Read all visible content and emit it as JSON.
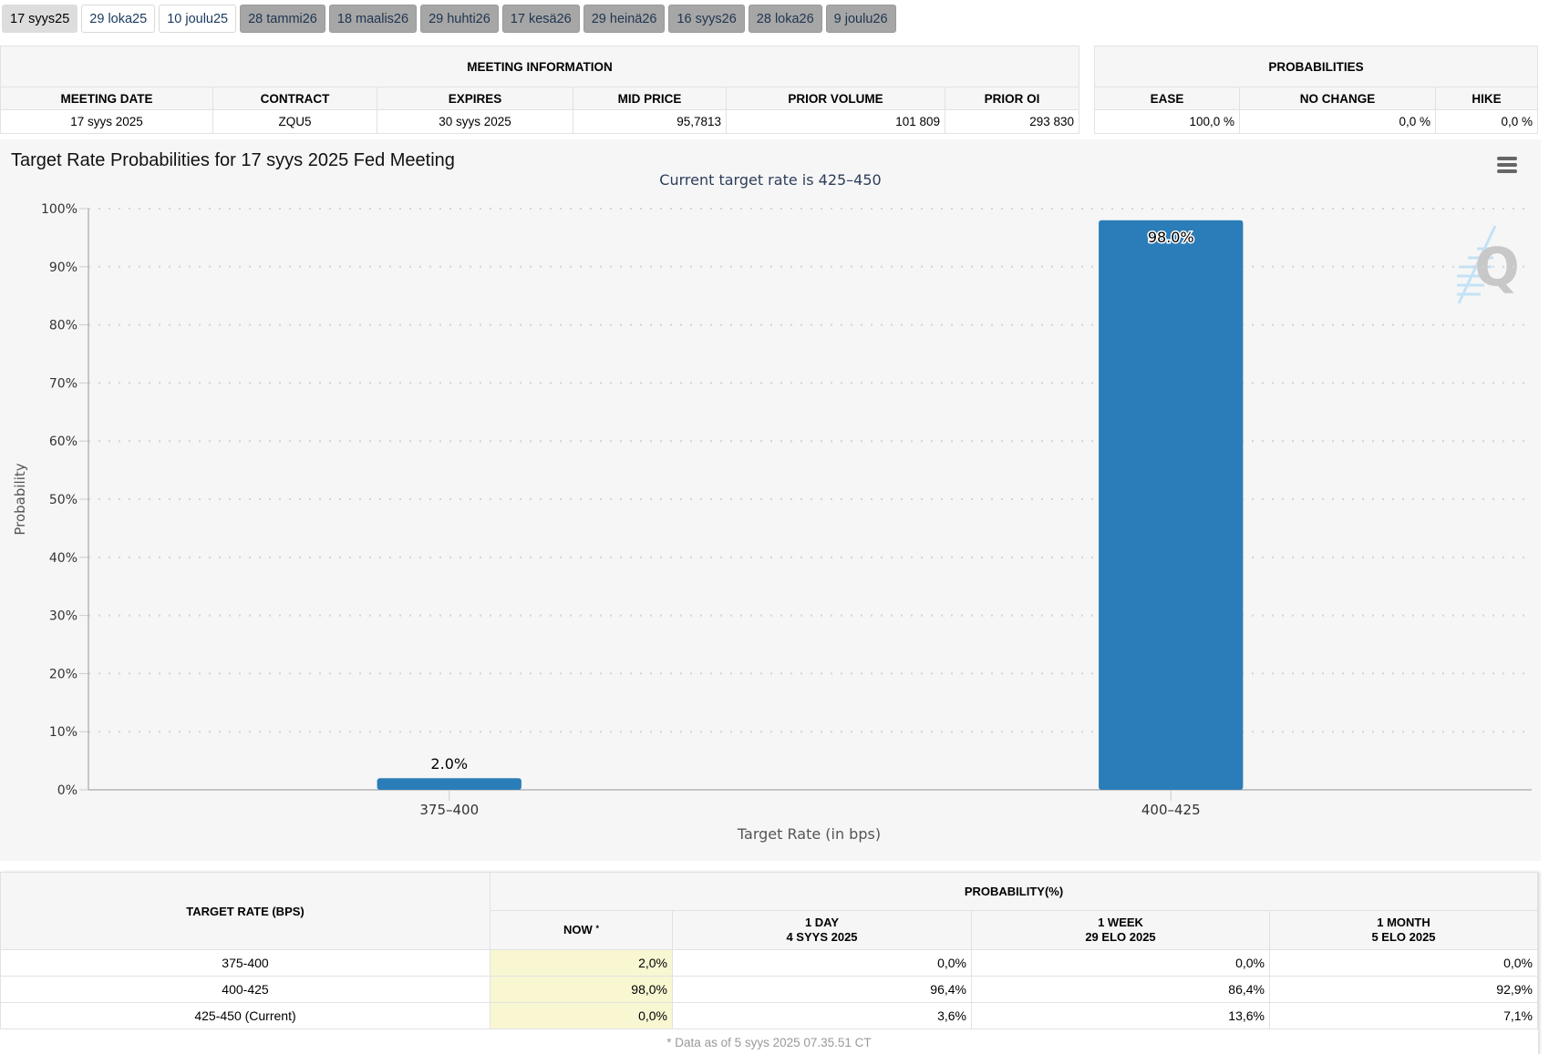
{
  "tabs": [
    {
      "label": "17 syys25",
      "state": "active"
    },
    {
      "label": "29 loka25",
      "state": "normal"
    },
    {
      "label": "10 joulu25",
      "state": "normal"
    },
    {
      "label": "28 tammi26",
      "state": "dim"
    },
    {
      "label": "18 maalis26",
      "state": "dim"
    },
    {
      "label": "29 huhti26",
      "state": "dim"
    },
    {
      "label": "17 kesä26",
      "state": "dim"
    },
    {
      "label": "29 heinä26",
      "state": "dim"
    },
    {
      "label": "16 syys26",
      "state": "dim"
    },
    {
      "label": "28 loka26",
      "state": "dim"
    },
    {
      "label": "9 joulu26",
      "state": "dim"
    }
  ],
  "meeting_info": {
    "group_title": "MEETING INFORMATION",
    "headers": [
      "MEETING DATE",
      "CONTRACT",
      "EXPIRES",
      "MID PRICE",
      "PRIOR VOLUME",
      "PRIOR OI"
    ],
    "row": [
      "17 syys 2025",
      "ZQU5",
      "30 syys 2025",
      "95,7813",
      "101 809",
      "293 830"
    ]
  },
  "probabilities": {
    "group_title": "PROBABILITIES",
    "headers": [
      "EASE",
      "NO CHANGE",
      "HIKE"
    ],
    "row": [
      "100,0 %",
      "0,0 %",
      "0,0 %"
    ]
  },
  "chart_data": {
    "type": "bar",
    "title": "Target Rate Probabilities for 17 syys 2025 Fed Meeting",
    "subtitle": "Current target rate is 425–450",
    "categories": [
      "375–400",
      "400–425"
    ],
    "values": [
      2.0,
      98.0
    ],
    "data_labels": [
      "2.0%",
      "98.0%"
    ],
    "xlabel": "Target Rate (in bps)",
    "ylabel": "Probability",
    "ylim": [
      0,
      100
    ],
    "yticks": [
      0,
      10,
      20,
      30,
      40,
      50,
      60,
      70,
      80,
      90,
      100
    ],
    "ytick_labels": [
      "0%",
      "10%",
      "20%",
      "30%",
      "40%",
      "50%",
      "60%",
      "70%",
      "80%",
      "90%",
      "100%"
    ],
    "grid": true,
    "bar_color": "#2a7db8",
    "legend": "none"
  },
  "rates_table": {
    "target_header": "TARGET RATE (BPS)",
    "prob_group": "PROBABILITY(%)",
    "columns": [
      {
        "line1": "NOW",
        "line2": "",
        "mark": "*"
      },
      {
        "line1": "1 DAY",
        "line2": "4 SYYS 2025",
        "mark": ""
      },
      {
        "line1": "1 WEEK",
        "line2": "29 ELO 2025",
        "mark": ""
      },
      {
        "line1": "1 MONTH",
        "line2": "5 ELO 2025",
        "mark": ""
      }
    ],
    "rows": [
      {
        "rate": "375-400",
        "values": [
          "2,0%",
          "0,0%",
          "0,0%",
          "0,0%"
        ]
      },
      {
        "rate": "400-425",
        "values": [
          "98,0%",
          "96,4%",
          "86,4%",
          "92,9%"
        ]
      },
      {
        "rate": "425-450 (Current)",
        "values": [
          "0,0%",
          "3,6%",
          "13,6%",
          "7,1%"
        ]
      }
    ],
    "footnote": "* Data as of 5 syys 2025 07.35.51 CT"
  }
}
